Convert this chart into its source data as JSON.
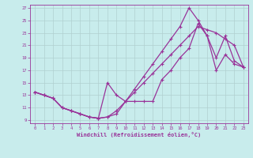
{
  "xlabel": "Windchill (Refroidissement éolien,°C)",
  "bg_color": "#c8ecec",
  "grid_color": "#b0d0d0",
  "line_color": "#993399",
  "xlim": [
    -0.5,
    23.5
  ],
  "ylim": [
    8.5,
    27.5
  ],
  "xticks": [
    0,
    1,
    2,
    3,
    4,
    5,
    6,
    7,
    8,
    9,
    10,
    11,
    12,
    13,
    14,
    15,
    16,
    17,
    18,
    19,
    20,
    21,
    22,
    23
  ],
  "yticks": [
    9,
    11,
    13,
    15,
    17,
    19,
    21,
    23,
    25,
    27
  ],
  "line1_x": [
    0,
    1,
    2,
    3,
    4,
    5,
    6,
    7,
    8,
    9,
    10,
    11,
    12,
    13,
    14,
    15,
    16,
    17,
    18,
    19,
    20,
    21,
    22,
    23
  ],
  "line1_y": [
    13.5,
    13.0,
    12.5,
    11.0,
    10.5,
    10.0,
    9.5,
    9.3,
    9.5,
    10.5,
    12.0,
    13.5,
    15.0,
    16.5,
    18.0,
    19.5,
    21.0,
    22.5,
    24.0,
    23.5,
    23.0,
    22.0,
    21.0,
    17.5
  ],
  "line2_x": [
    0,
    1,
    2,
    3,
    4,
    5,
    6,
    7,
    8,
    9,
    10,
    11,
    12,
    13,
    14,
    15,
    16,
    17,
    18,
    19,
    20,
    21,
    22,
    23
  ],
  "line2_y": [
    13.5,
    13.0,
    12.5,
    11.0,
    10.5,
    10.0,
    9.5,
    9.3,
    9.5,
    10.0,
    12.0,
    14.0,
    16.0,
    18.0,
    20.0,
    22.0,
    24.0,
    27.0,
    25.0,
    22.5,
    19.0,
    22.5,
    18.5,
    17.5
  ],
  "line3_x": [
    0,
    1,
    2,
    3,
    4,
    5,
    6,
    7,
    8,
    9,
    10,
    11,
    12,
    13,
    14,
    15,
    16,
    17,
    18,
    19,
    20,
    21,
    22,
    23
  ],
  "line3_y": [
    13.5,
    13.0,
    12.5,
    11.0,
    10.5,
    10.0,
    9.5,
    9.3,
    15.0,
    13.0,
    12.0,
    12.0,
    12.0,
    12.0,
    15.5,
    17.0,
    19.0,
    20.5,
    24.5,
    22.5,
    17.0,
    19.5,
    18.0,
    17.5
  ]
}
